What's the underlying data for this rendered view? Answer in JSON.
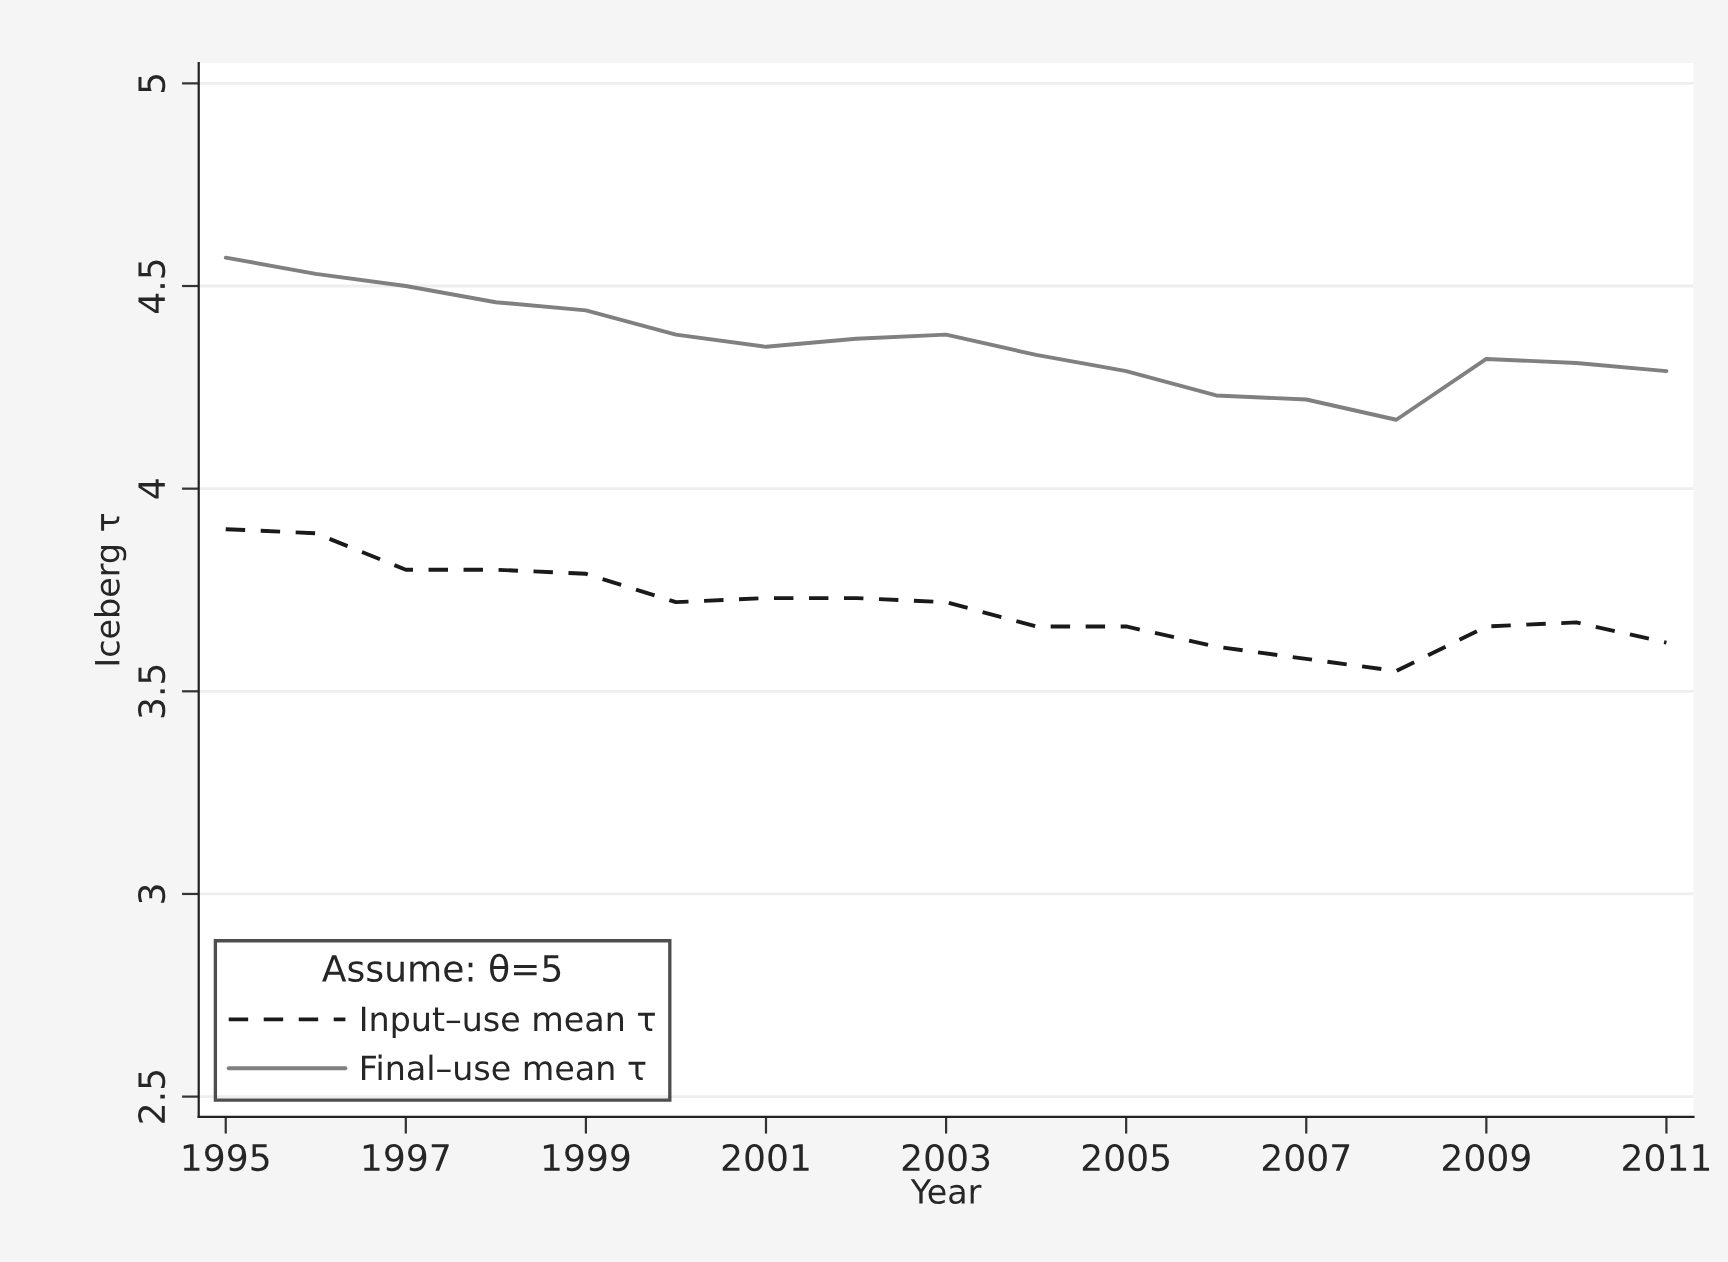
{
  "chart_data": {
    "type": "line",
    "xlabel": "Year",
    "ylabel": "Iceberg τ",
    "legend_title": "Assume: θ=5",
    "x": [
      1995,
      1996,
      1997,
      1998,
      1999,
      2000,
      2001,
      2002,
      2003,
      2004,
      2005,
      2006,
      2007,
      2008,
      2009,
      2010,
      2011
    ],
    "series": [
      {
        "name": "Input–use mean τ",
        "color": "#1a1a1a",
        "line_style": "dashed",
        "values": [
          3.9,
          3.89,
          3.8,
          3.8,
          3.79,
          3.72,
          3.73,
          3.73,
          3.72,
          3.66,
          3.66,
          3.61,
          3.58,
          3.55,
          3.66,
          3.67,
          3.62
        ]
      },
      {
        "name": "Final–use mean τ",
        "color": "#808080",
        "line_style": "solid",
        "values": [
          4.57,
          4.53,
          4.5,
          4.46,
          4.44,
          4.38,
          4.35,
          4.37,
          4.38,
          4.33,
          4.29,
          4.23,
          4.22,
          4.17,
          4.32,
          4.31,
          4.29
        ]
      }
    ],
    "xlim": [
      1994.7,
      2011.3
    ],
    "xticks": [
      1995,
      1997,
      1999,
      2001,
      2003,
      2005,
      2007,
      2009,
      2011
    ],
    "ylim": [
      2.45,
      5.05
    ],
    "yticks": [
      2.5,
      3,
      3.5,
      4,
      4.5,
      5
    ],
    "grid": "y",
    "legend": "bottom left",
    "marker": "none"
  }
}
